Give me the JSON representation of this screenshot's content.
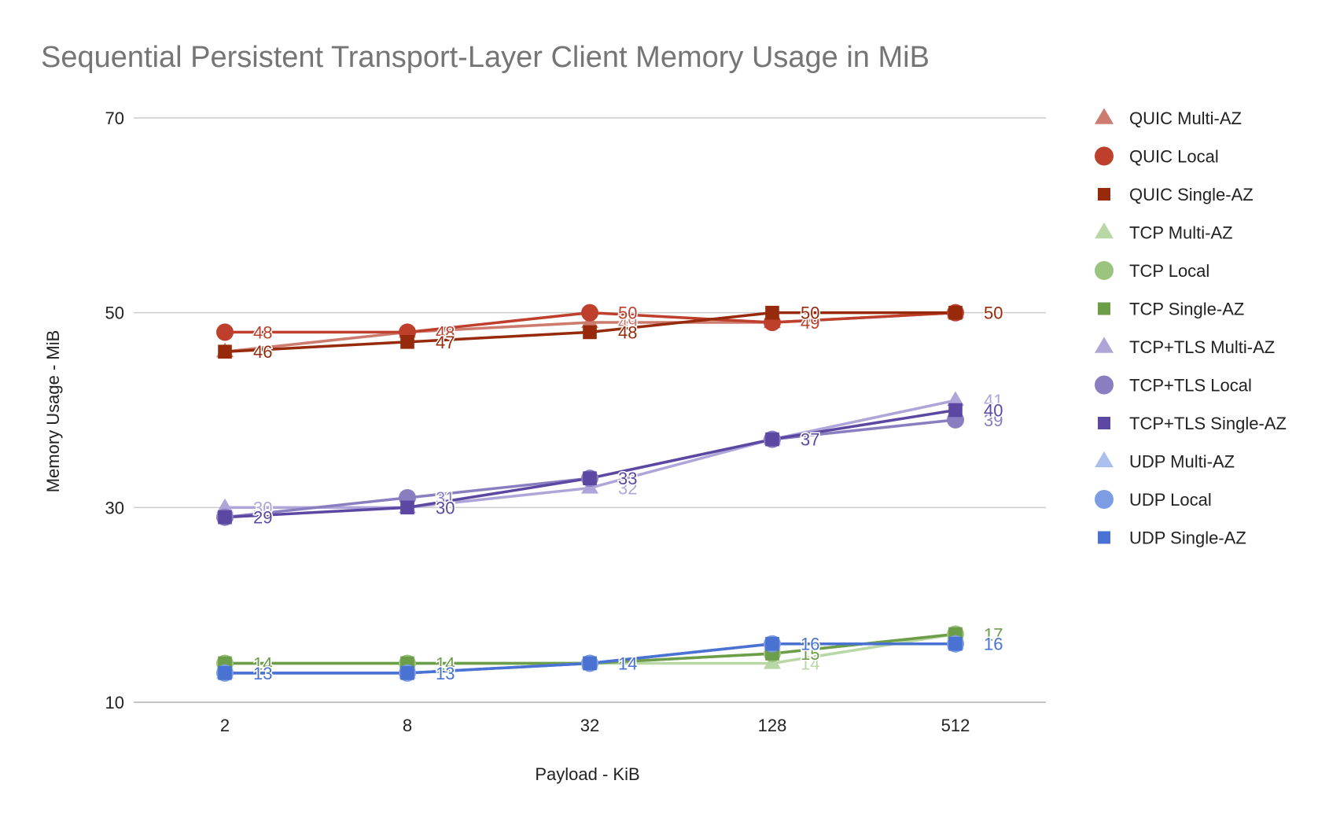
{
  "chart_data": {
    "type": "line",
    "title": "Sequential Persistent Transport-Layer Client Memory Usage in MiB",
    "xlabel": "Payload - KiB",
    "ylabel": "Memory Usage - MiB",
    "categories": [
      "2",
      "8",
      "32",
      "128",
      "512"
    ],
    "ylim": [
      10,
      70
    ],
    "yticks": [
      10,
      30,
      50,
      70
    ],
    "grid": true,
    "legend_position": "right",
    "series": [
      {
        "name": "QUIC Multi-AZ",
        "marker": "triangle",
        "color": "#cd7b6f",
        "values": [
          46,
          48,
          49,
          49,
          50
        ],
        "labels": [
          "46",
          "48",
          "49",
          "49",
          "50"
        ]
      },
      {
        "name": "QUIC Local",
        "marker": "circle",
        "color": "#bd3f2c",
        "values": [
          48,
          48,
          50,
          49,
          50
        ],
        "labels": [
          "48",
          "48",
          "50",
          "49",
          "50"
        ]
      },
      {
        "name": "QUIC Single-AZ",
        "marker": "square",
        "color": "#962a0b",
        "values": [
          46,
          47,
          48,
          50,
          50
        ],
        "labels": [
          "46",
          "47",
          "48",
          "50",
          "50"
        ]
      },
      {
        "name": "TCP Multi-AZ",
        "marker": "triangle",
        "color": "#b8d7a5",
        "values": [
          14,
          14,
          14,
          14,
          17
        ],
        "labels": [
          "14",
          "14",
          "14",
          "14",
          "17"
        ]
      },
      {
        "name": "TCP Local",
        "marker": "circle",
        "color": "#9bc47e",
        "values": [
          14,
          14,
          14,
          15,
          17
        ],
        "labels": [
          "14",
          "14",
          "14",
          "15",
          "17"
        ]
      },
      {
        "name": "TCP Single-AZ",
        "marker": "square",
        "color": "#6c9d49",
        "values": [
          14,
          14,
          14,
          15,
          17
        ],
        "labels": [
          "14",
          "14",
          "14",
          "15",
          "17"
        ]
      },
      {
        "name": "TCP+TLS Multi-AZ",
        "marker": "triangle",
        "color": "#afa5d8",
        "values": [
          30,
          30,
          32,
          37,
          41
        ],
        "labels": [
          "30",
          "30",
          "32",
          "37",
          "41"
        ]
      },
      {
        "name": "TCP+TLS Local",
        "marker": "circle",
        "color": "#8a7ec1",
        "values": [
          29,
          31,
          33,
          37,
          39
        ],
        "labels": [
          "29",
          "31",
          "33",
          "37",
          "39"
        ]
      },
      {
        "name": "TCP+TLS Single-AZ",
        "marker": "square",
        "color": "#5c48a3",
        "values": [
          29,
          30,
          33,
          37,
          40
        ],
        "labels": [
          "29",
          "30",
          "33",
          "37",
          "40"
        ]
      },
      {
        "name": "UDP Multi-AZ",
        "marker": "triangle",
        "color": "#abbfee",
        "values": [
          13,
          13,
          14,
          16,
          16
        ],
        "labels": [
          "13",
          "13",
          "14",
          "16",
          "16"
        ]
      },
      {
        "name": "UDP Local",
        "marker": "circle",
        "color": "#7c9ce4",
        "values": [
          13,
          13,
          14,
          16,
          16
        ],
        "labels": [
          "13",
          "13",
          "14",
          "16",
          "16"
        ]
      },
      {
        "name": "UDP Single-AZ",
        "marker": "square",
        "color": "#4a72d2",
        "values": [
          13,
          13,
          14,
          16,
          16
        ],
        "labels": [
          "13",
          "13",
          "14",
          "16",
          "16"
        ]
      }
    ]
  }
}
